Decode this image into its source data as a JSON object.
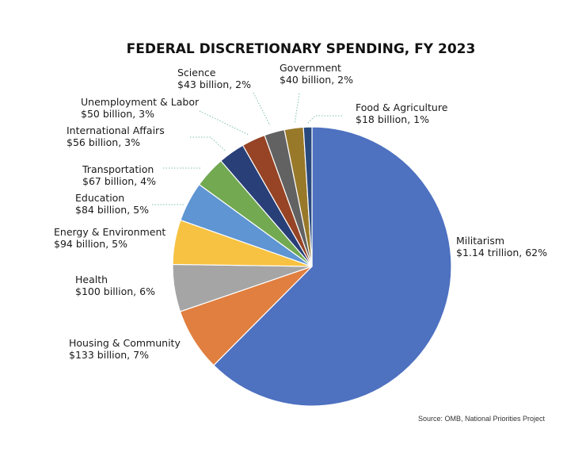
{
  "chart_data": {
    "type": "pie",
    "title": "FEDERAL DISCRETIONARY SPENDING, FY 2023",
    "source": "Source: OMB, National Priorities Project",
    "start_angle_deg": 0,
    "direction": "clockwise",
    "slices": [
      {
        "name": "Militarism",
        "amount": "$1.14 trillion, 62%",
        "value": 1140,
        "color": "#4e71c0"
      },
      {
        "name": "Housing & Community",
        "amount": "$133 billion, 7%",
        "value": 133,
        "color": "#e07f3f"
      },
      {
        "name": "Health",
        "amount": "$100 billion, 6%",
        "value": 100,
        "color": "#a5a5a5"
      },
      {
        "name": "Energy & Environment",
        "amount": "$94 billion, 5%",
        "value": 94,
        "color": "#f7c242"
      },
      {
        "name": "Education",
        "amount": "$84 billion, 5%",
        "value": 84,
        "color": "#5e95d2"
      },
      {
        "name": "Transportation",
        "amount": "$67 billion, 4%",
        "value": 67,
        "color": "#72a951"
      },
      {
        "name": "International Affairs",
        "amount": "$56 billion, 3%",
        "value": 56,
        "color": "#293f78"
      },
      {
        "name": "Unemployment & Labor",
        "amount": "$50 billion, 3%",
        "value": 50,
        "color": "#964425"
      },
      {
        "name": "Science",
        "amount": "$43 billion, 2%",
        "value": 43,
        "color": "#626262"
      },
      {
        "name": "Government",
        "amount": "$40 billion, 2%",
        "value": 40,
        "color": "#98792a"
      },
      {
        "name": "Food & Agriculture",
        "amount": "$18 billion, 1%",
        "value": 18,
        "color": "#28497e"
      }
    ]
  }
}
